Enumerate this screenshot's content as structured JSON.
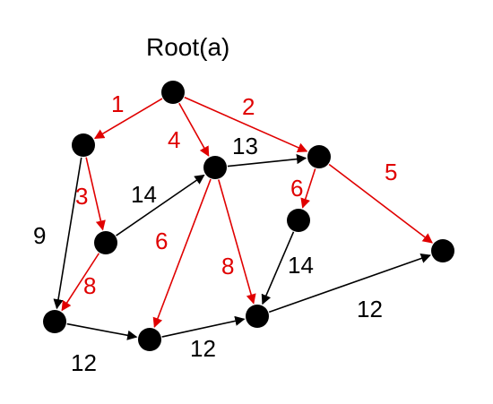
{
  "title": "Root(a)",
  "colors": {
    "tree": "#e00000",
    "other": "#000000",
    "node": "#000000"
  },
  "nodes": [
    {
      "id": "root"
    },
    {
      "id": "n1"
    },
    {
      "id": "n2"
    },
    {
      "id": "n3"
    },
    {
      "id": "n4"
    },
    {
      "id": "n5"
    },
    {
      "id": "n6"
    },
    {
      "id": "n7"
    },
    {
      "id": "n8"
    },
    {
      "id": "n9"
    }
  ],
  "edges": [
    {
      "id": "root-n1",
      "from": "root",
      "to": "n1",
      "label": "1",
      "tree": true
    },
    {
      "id": "root-n4",
      "from": "root",
      "to": "n4",
      "label": "4",
      "tree": true
    },
    {
      "id": "root-n5",
      "from": "root",
      "to": "n5",
      "label": "2",
      "tree": true
    },
    {
      "id": "n1-n3",
      "from": "n1",
      "to": "n3",
      "label": "3",
      "tree": true
    },
    {
      "id": "n1-n2",
      "from": "n1",
      "to": "n2",
      "label": "9",
      "tree": false
    },
    {
      "id": "n3-n4",
      "from": "n3",
      "to": "n4",
      "label": "14",
      "tree": false
    },
    {
      "id": "n3-n2",
      "from": "n3",
      "to": "n2",
      "label": "8",
      "tree": true
    },
    {
      "id": "n4-n5",
      "from": "n4",
      "to": "n5",
      "label": "13",
      "tree": false
    },
    {
      "id": "n4-n7",
      "from": "n4",
      "to": "n7",
      "label": "6",
      "tree": true
    },
    {
      "id": "n4-n8",
      "from": "n4",
      "to": "n8",
      "label": "8",
      "tree": true
    },
    {
      "id": "n5-n6",
      "from": "n5",
      "to": "n6",
      "label": "6",
      "tree": true
    },
    {
      "id": "n5-n9",
      "from": "n5",
      "to": "n9",
      "label": "5",
      "tree": true
    },
    {
      "id": "n6-n8",
      "from": "n6",
      "to": "n8",
      "label": "14",
      "tree": false
    },
    {
      "id": "n2-n7",
      "from": "n2",
      "to": "n7",
      "label": "12",
      "tree": false
    },
    {
      "id": "n7-n8",
      "from": "n7",
      "to": "n8",
      "label": "12",
      "tree": false
    },
    {
      "id": "n8-n9",
      "from": "n8",
      "to": "n9",
      "label": "12",
      "tree": false
    }
  ]
}
